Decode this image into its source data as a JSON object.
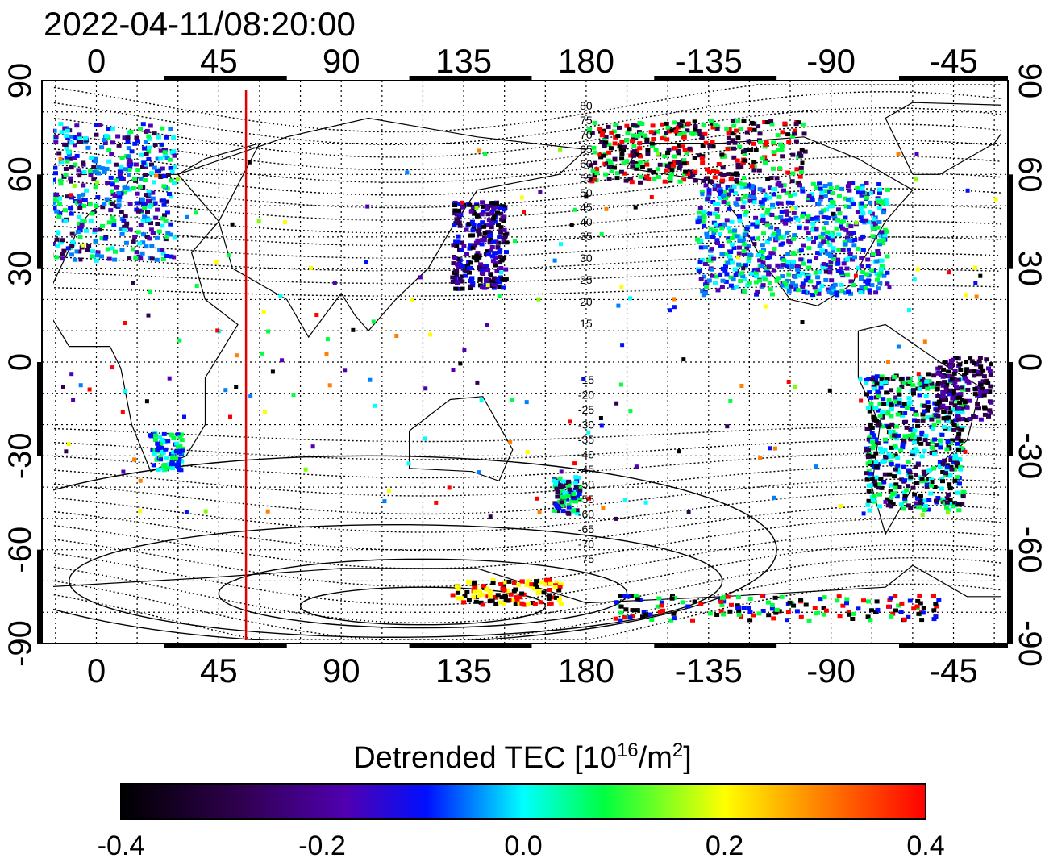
{
  "title": "2022-04-11/08:20:00",
  "x_ticks_top": [
    "0",
    "45",
    "90",
    "135",
    "180",
    "-135",
    "-90",
    "-45"
  ],
  "x_ticks_bottom": [
    "0",
    "45",
    "90",
    "135",
    "180",
    "-135",
    "-90",
    "-45"
  ],
  "y_ticks_left": [
    "90",
    "60",
    "30",
    "0",
    "-30",
    "-60",
    "-90"
  ],
  "y_ticks_right": [
    "90",
    "60",
    "30",
    "0",
    "-30",
    "-60",
    "-90"
  ],
  "contour_labels_north": [
    "80",
    "75",
    "70",
    "65",
    "60",
    "55",
    "50",
    "45",
    "40",
    "35",
    "30",
    "25",
    "20",
    "15"
  ],
  "contour_labels_south": [
    "-15",
    "-20",
    "-25",
    "-30",
    "-35",
    "-40",
    "-45",
    "-50",
    "-55",
    "-60",
    "-65",
    "-70",
    "-75"
  ],
  "colorbar": {
    "label_main": "Detrended TEC  [10",
    "label_exp": "16",
    "label_unit": "/m",
    "label_exp2": "2",
    "label_end": "]",
    "ticks": [
      "-0.4",
      "-0.2",
      "0.0",
      "0.2",
      "0.4"
    ],
    "min": -0.4,
    "max": 0.4
  },
  "map": {
    "lon_range": [
      -20,
      335
    ],
    "lat_range": [
      -90,
      90
    ],
    "marker_longitude": 55,
    "marker_color": "#e00000"
  }
}
